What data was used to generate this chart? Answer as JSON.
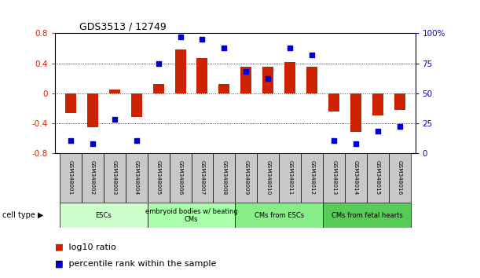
{
  "title": "GDS3513 / 12749",
  "samples": [
    "GSM348001",
    "GSM348002",
    "GSM348003",
    "GSM348004",
    "GSM348005",
    "GSM348006",
    "GSM348007",
    "GSM348008",
    "GSM348009",
    "GSM348010",
    "GSM348011",
    "GSM348012",
    "GSM348013",
    "GSM348014",
    "GSM348015",
    "GSM348016"
  ],
  "log10_ratio": [
    -0.27,
    -0.46,
    0.05,
    -0.32,
    0.12,
    0.58,
    0.47,
    0.12,
    0.35,
    0.35,
    0.42,
    0.35,
    -0.25,
    -0.52,
    -0.3,
    -0.22
  ],
  "percentile_rank": [
    10,
    8,
    28,
    10,
    75,
    97,
    95,
    88,
    68,
    62,
    88,
    82,
    10,
    8,
    18,
    22
  ],
  "cell_types": [
    {
      "label": "ESCs",
      "start": 0,
      "end": 4,
      "color": "#ccffcc"
    },
    {
      "label": "embryoid bodies w/ beating\nCMs",
      "start": 4,
      "end": 8,
      "color": "#aaffaa"
    },
    {
      "label": "CMs from ESCs",
      "start": 8,
      "end": 12,
      "color": "#88ee88"
    },
    {
      "label": "CMs from fetal hearts",
      "start": 12,
      "end": 16,
      "color": "#55cc55"
    }
  ],
  "ylim_left": [
    -0.8,
    0.8
  ],
  "ylim_right": [
    0,
    100
  ],
  "bar_color": "#cc2200",
  "dot_color": "#0000cc",
  "bg_color": "#ffffff",
  "plot_bg": "#ffffff",
  "tick_color_left": "#cc2200",
  "tick_color_right": "#0000cc",
  "yticks_left": [
    -0.8,
    -0.4,
    0,
    0.4,
    0.8
  ],
  "yticks_right": [
    0,
    25,
    50,
    75,
    100
  ],
  "ytick_labels_right": [
    "0",
    "25",
    "50",
    "75",
    "100%"
  ]
}
